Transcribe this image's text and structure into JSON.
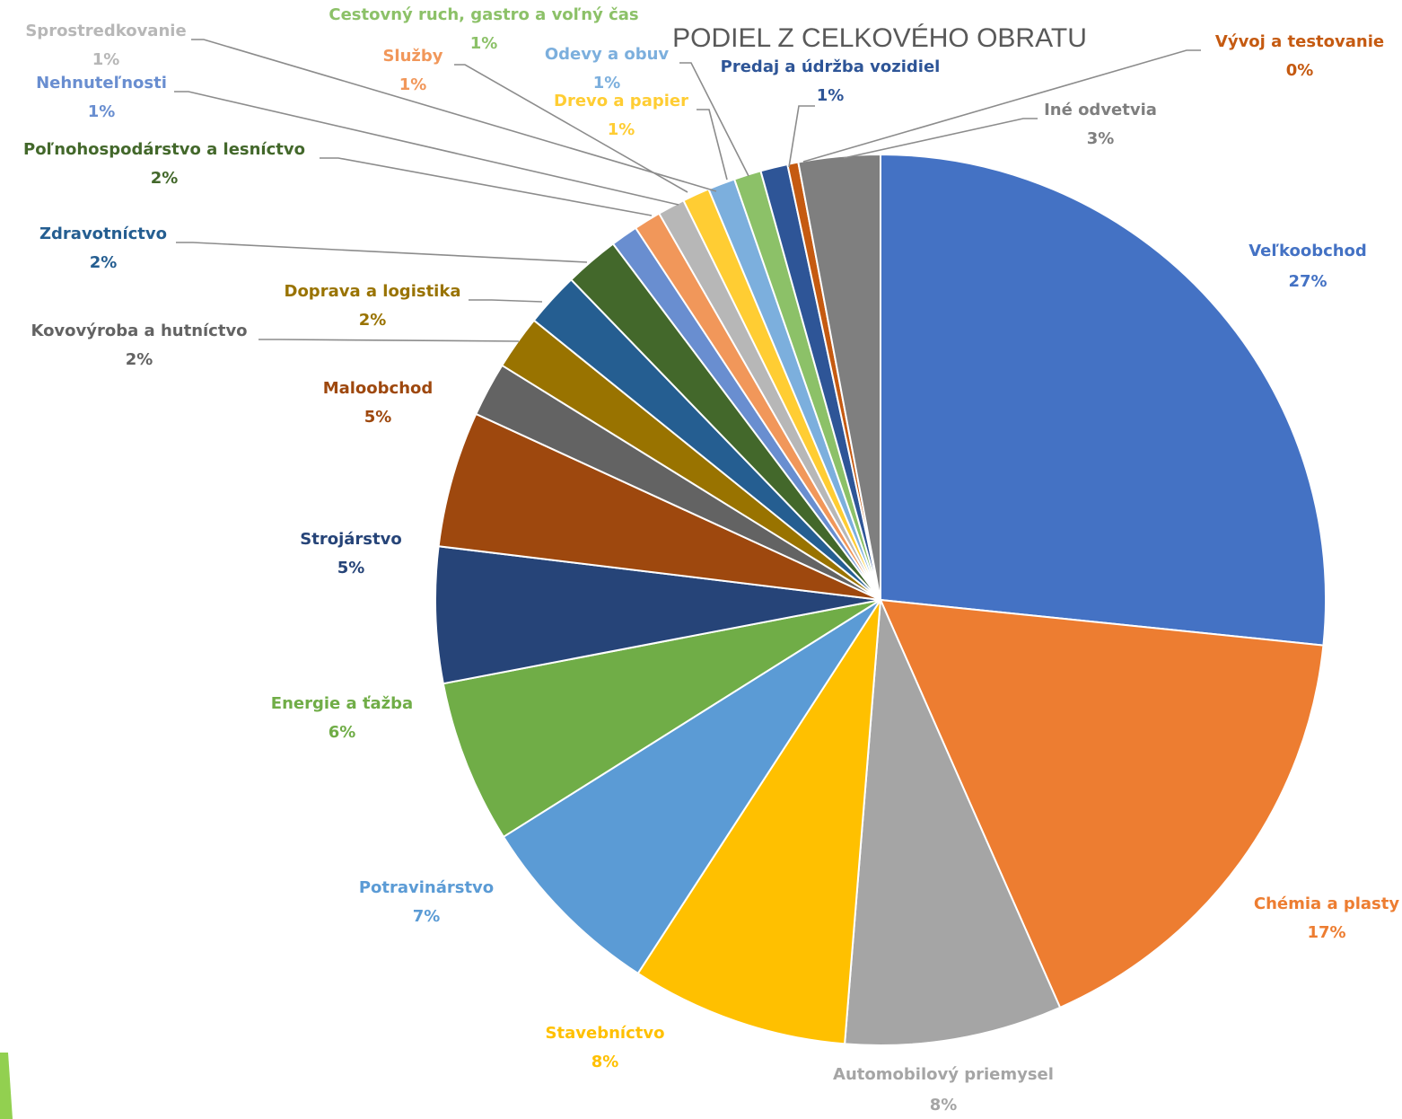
{
  "chart_data": {
    "type": "pie",
    "title": "PODIEL Z CELKOVÉHO OBRATU",
    "legend": "none (data labels with leader lines)",
    "slices": [
      {
        "name": "Veľkoobchod",
        "value": 27,
        "label": "27%",
        "color": "#4472C4"
      },
      {
        "name": "Chémia a plasty",
        "value": 17,
        "label": "17%",
        "color": "#ED7D31"
      },
      {
        "name": "Automobilový priemysel",
        "value": 8,
        "label": "8%",
        "color": "#A5A5A5"
      },
      {
        "name": "Stavebníctvo",
        "value": 8,
        "label": "8%",
        "color": "#FFC000"
      },
      {
        "name": "Potravinárstvo",
        "value": 7,
        "label": "7%",
        "color": "#5B9BD5"
      },
      {
        "name": "Energie a ťažba",
        "value": 6,
        "label": "6%",
        "color": "#70AD47"
      },
      {
        "name": "Strojárstvo",
        "value": 5,
        "label": "5%",
        "color": "#264478"
      },
      {
        "name": "Maloobchod",
        "value": 5,
        "label": "5%",
        "color": "#9E480E"
      },
      {
        "name": "Kovovýroba a hutníctvo",
        "value": 2,
        "label": "2%",
        "color": "#636363"
      },
      {
        "name": "Doprava a logistika",
        "value": 2,
        "label": "2%",
        "color": "#997300"
      },
      {
        "name": "Zdravotníctvo",
        "value": 2,
        "label": "2%",
        "color": "#255E91"
      },
      {
        "name": "Poľnohospodárstvo a lesníctvo",
        "value": 2,
        "label": "2%",
        "color": "#43682B"
      },
      {
        "name": "Nehnuteľnosti",
        "value": 1,
        "label": "1%",
        "color": "#698ED0"
      },
      {
        "name": "Služby",
        "value": 1,
        "label": "1%",
        "color": "#F1975A"
      },
      {
        "name": "Sprostredkovanie",
        "value": 1,
        "label": "1%",
        "color": "#B7B7B7"
      },
      {
        "name": "Drevo a papier",
        "value": 1,
        "label": "1%",
        "color": "#FFCD33"
      },
      {
        "name": "Odevy a obuv",
        "value": 1,
        "label": "1%",
        "color": "#7CAFDD"
      },
      {
        "name": "Cestovný ruch, gastro a voľný čas",
        "value": 1,
        "label": "1%",
        "color": "#8CC168"
      },
      {
        "name": "Predaj a údržba vozidiel",
        "value": 1,
        "label": "1%",
        "color": "#2E5597"
      },
      {
        "name": "Vývoj a testovanie",
        "value": 0.4,
        "label": "0%",
        "color": "#C55A11"
      },
      {
        "name": "Iné odvetvia",
        "value": 3,
        "label": "3%",
        "color": "#7F7F7F"
      }
    ]
  },
  "decor": {
    "accent_color": "#92D050"
  }
}
